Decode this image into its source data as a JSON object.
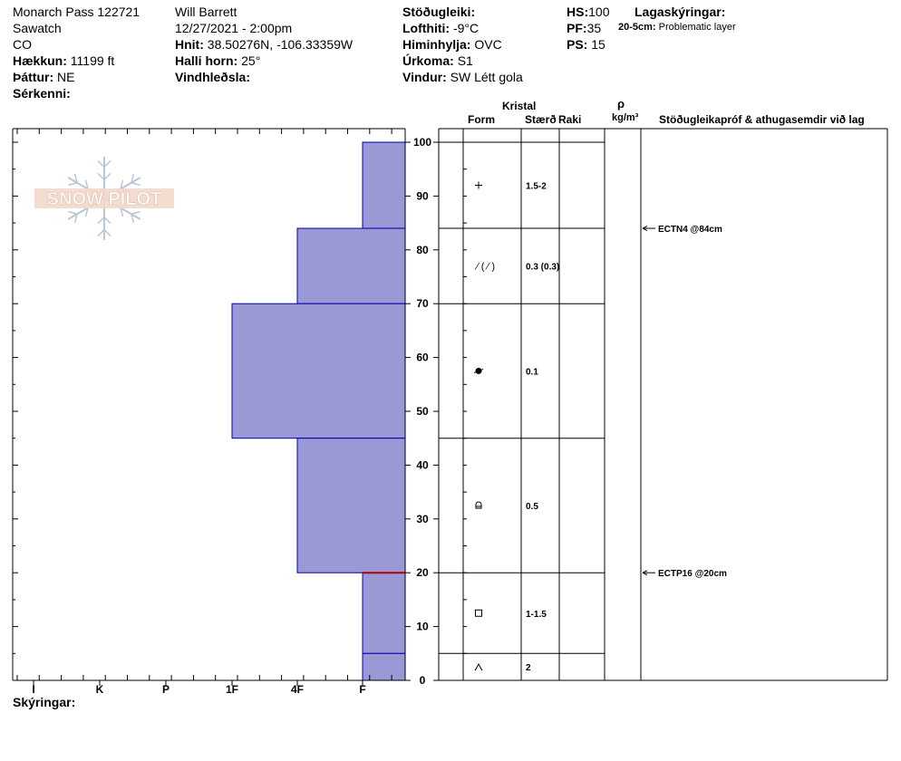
{
  "header": {
    "col1": {
      "location": "Monarch Pass 122721",
      "range": "Sawatch",
      "state": "CO",
      "elevation_label": "Hækkun:",
      "elevation": "11199 ft",
      "aspect_label": "Þáttur:",
      "aspect": "NE",
      "features_label": "Sérkenni:"
    },
    "col2": {
      "observer": "Will  Barrett",
      "datetime": "12/27/2021 - 2:00pm",
      "coords_label": "Hnit:",
      "coords": "38.50276N, -106.33359W",
      "slope_label": "Halli horn:",
      "slope": "25°",
      "wind_loading_label": "Vindhleðsla:"
    },
    "col3": {
      "stability_label": "Stöðugleiki:",
      "air_temp_label": "Lofthiti:",
      "air_temp": "-9°C",
      "sky_label": "Himinhylja:",
      "sky": "OVC",
      "precip_label": "Úrkoma:",
      "precip": "S1",
      "wind_label": "Vindur:",
      "wind": "SW Létt gola"
    },
    "col4": {
      "hs_label": "HS:",
      "hs": "100",
      "pf_label": "PF:",
      "pf": "35",
      "ps_label": "PS:",
      "ps": "15"
    },
    "col5": {
      "layer_notes_label": "Lagaskýringar:",
      "layer_note_range": "20-5cm:",
      "layer_note_text": "Problematic layer"
    }
  },
  "table_headers": {
    "crystal": "Kristal",
    "form": "Form",
    "size": "Stærð",
    "moisture": "Raki",
    "rho": "ρ",
    "density_unit": "kg/m³",
    "tests": "Stöðugleikapróf & athugasemdir við lag"
  },
  "footer": {
    "legend_label": "Skýringar:"
  },
  "logo": {
    "text": "SNOW PILOT"
  },
  "colors": {
    "layer_fill": "#9a99d6",
    "layer_edge": "#0000aa",
    "problem_line": "#b00000",
    "grid": "#000000"
  },
  "chart_data": {
    "type": "bar",
    "orientation": "horizontal",
    "x_categories": [
      "I",
      "K",
      "P",
      "1F",
      "4F",
      "F"
    ],
    "y_ticks": [
      0,
      10,
      20,
      30,
      40,
      50,
      60,
      70,
      80,
      90,
      100
    ],
    "ylim": [
      0,
      100
    ],
    "layers": [
      {
        "top": 100,
        "bottom": 84,
        "hardness": "F",
        "form": "+",
        "size": "1.5-2"
      },
      {
        "top": 84,
        "bottom": 70,
        "hardness": "4F",
        "form": "/ (/)",
        "size": "0.3 (0.3)"
      },
      {
        "top": 70,
        "bottom": 45,
        "hardness": "1F",
        "form": "ball",
        "size": "0.1"
      },
      {
        "top": 45,
        "bottom": 20,
        "hardness": "4F",
        "form": "dome",
        "size": "0.5"
      },
      {
        "top": 20,
        "bottom": 5,
        "hardness": "F",
        "form": "square",
        "size": "1-1.5"
      },
      {
        "top": 5,
        "bottom": 0,
        "hardness": "F",
        "form": "^",
        "size": "2"
      }
    ],
    "tests": [
      {
        "depth": 84,
        "label": "ECTN4 @84cm"
      },
      {
        "depth": 20,
        "label": "ECTP16 @20cm"
      }
    ],
    "problem_layer": 20
  }
}
